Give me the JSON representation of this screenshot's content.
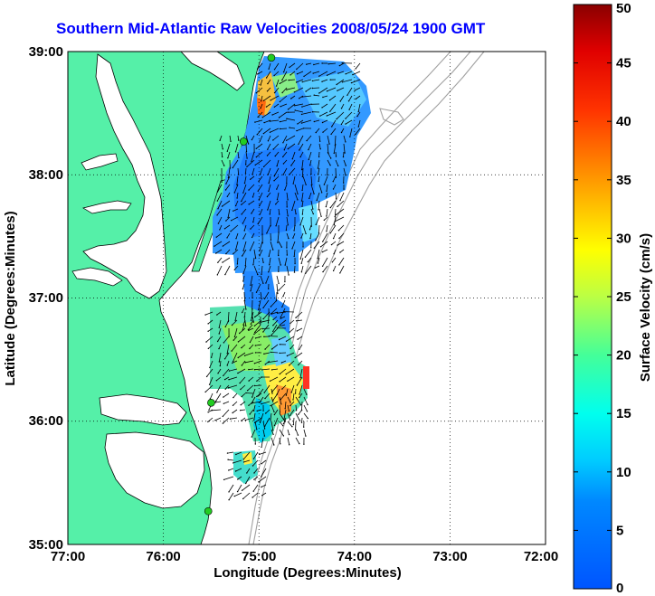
{
  "title": "Southern Mid-Atlantic Raw Velocities 2008/05/24 1900 GMT",
  "xlabel": "Longitude (Degrees:Minutes)",
  "ylabel": "Latitude (Degrees:Minutes)",
  "colorbar": {
    "label": "Surface Velocity (cm/s)",
    "min": 0,
    "max": 50,
    "ticks": [
      "0",
      "5",
      "10",
      "15",
      "20",
      "25",
      "30",
      "35",
      "40",
      "45",
      "50"
    ]
  },
  "map_extent": {
    "lon": [
      -77,
      -72
    ],
    "lat": [
      35,
      39
    ]
  },
  "x_ticks": [
    "77:00",
    "76:00",
    "75:00",
    "74:00",
    "73:00",
    "72:00"
  ],
  "y_ticks": [
    "39:00",
    "38:00",
    "37:00",
    "36:00",
    "35:00"
  ],
  "colors": {
    "land": "#55f0a8",
    "coastline": "#000000",
    "bathymetry": "#a0a0a0",
    "station": "#22cc22",
    "title": "#0000ff"
  },
  "stations": [
    {
      "lon": -74.87,
      "lat": 38.95
    },
    {
      "lon": -75.16,
      "lat": 38.27
    },
    {
      "lon": -75.5,
      "lat": 36.15
    },
    {
      "lon": -75.53,
      "lat": 35.27
    }
  ]
}
